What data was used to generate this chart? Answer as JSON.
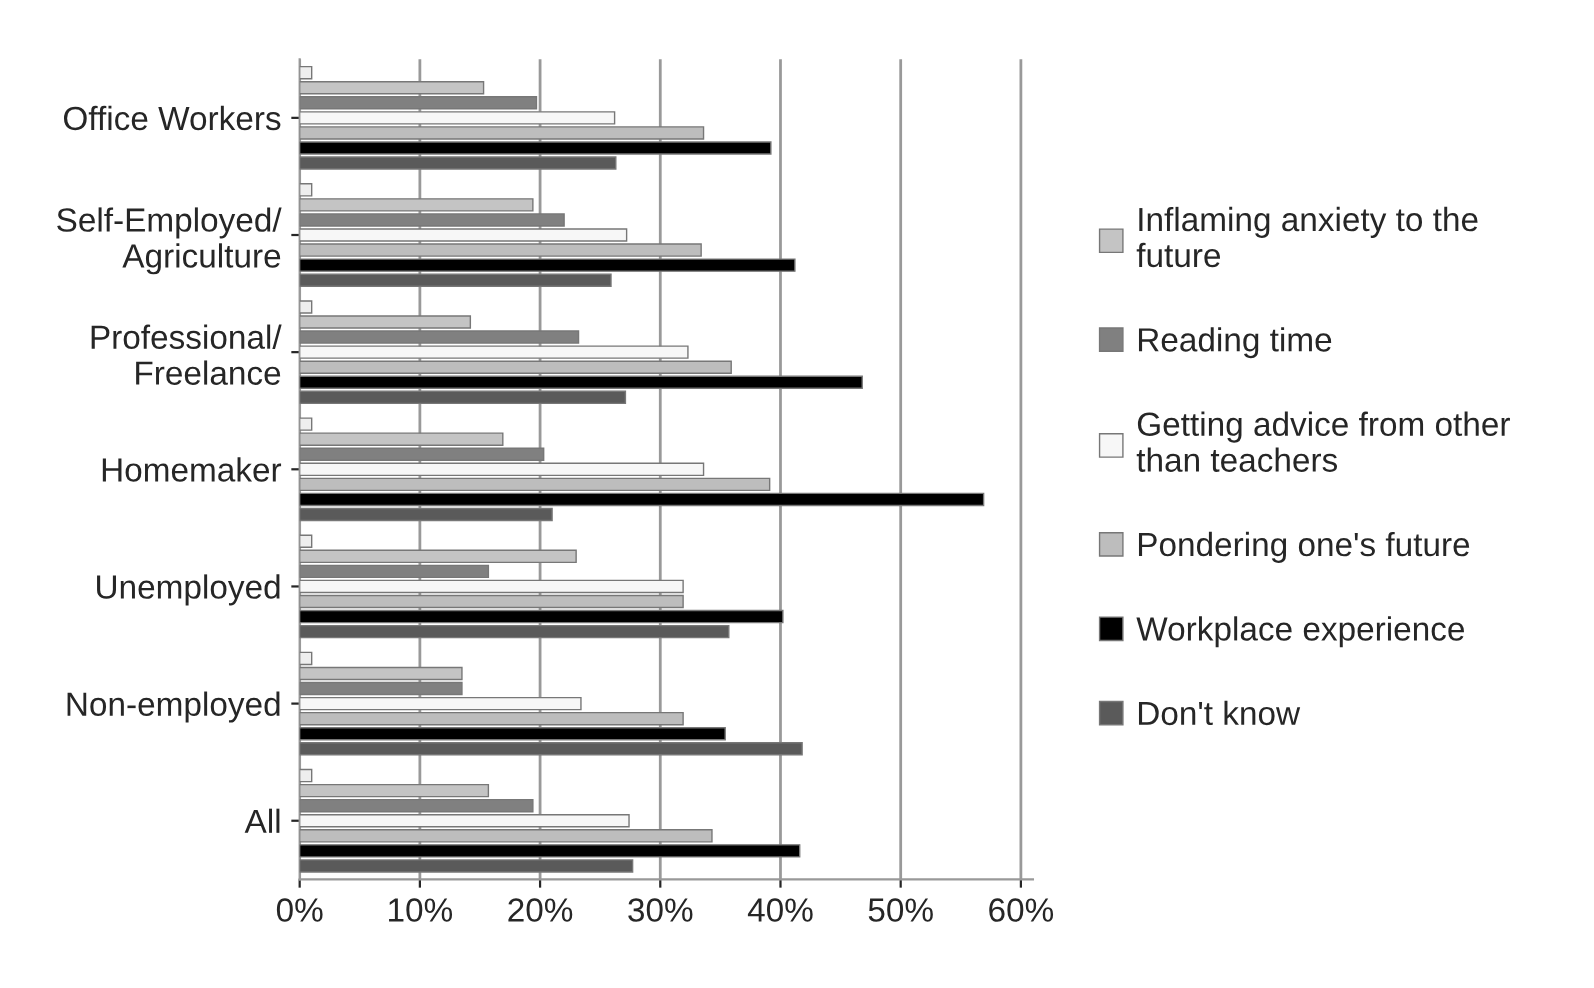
{
  "chart_data": {
    "type": "bar",
    "orientation": "horizontal",
    "categories": [
      "Office Workers",
      "Self-Employed/ Agriculture",
      "Professional/ Freelance",
      "Homemaker",
      "Unemployed",
      "Non-employed",
      "All"
    ],
    "series": [
      {
        "color": "#eeeeee",
        "values": [
          1.0,
          1.0,
          1.0,
          1.0,
          1.0,
          1.0,
          1.0
        ]
      },
      {
        "name": "Inflaming anxiety to the future",
        "color": "#c4c4c4",
        "values": [
          15.3,
          19.4,
          14.2,
          16.9,
          23.0,
          13.5,
          15.7
        ]
      },
      {
        "name": "Reading time",
        "color": "#808080",
        "values": [
          19.7,
          22.0,
          23.2,
          20.3,
          15.7,
          13.5,
          19.4
        ]
      },
      {
        "name": "Getting advice from other than teachers",
        "color": "#f7f7f7",
        "values": [
          26.2,
          27.2,
          32.3,
          33.6,
          31.9,
          23.4,
          27.4
        ]
      },
      {
        "name": "Pondering one's future",
        "color": "#bdbdbd",
        "values": [
          33.6,
          33.4,
          35.9,
          39.1,
          31.9,
          31.9,
          34.3
        ]
      },
      {
        "name": "Workplace experience",
        "color": "#000000",
        "values": [
          39.2,
          41.2,
          46.8,
          56.9,
          40.2,
          35.4,
          41.6
        ]
      },
      {
        "name": "Don't know",
        "color": "#5a5a5a",
        "values": [
          26.3,
          25.9,
          27.1,
          21.0,
          35.7,
          41.8,
          27.7
        ]
      }
    ],
    "xlim": [
      0,
      61
    ],
    "xticks": [
      {
        "value": 0,
        "label": "0%"
      },
      {
        "value": 10,
        "label": "10%"
      },
      {
        "value": 20,
        "label": "20%"
      },
      {
        "value": 30,
        "label": "30%"
      },
      {
        "value": 40,
        "label": "40%"
      },
      {
        "value": 50,
        "label": "50%"
      },
      {
        "value": 60,
        "label": "60%"
      }
    ],
    "grid": "x",
    "legend": "right"
  }
}
